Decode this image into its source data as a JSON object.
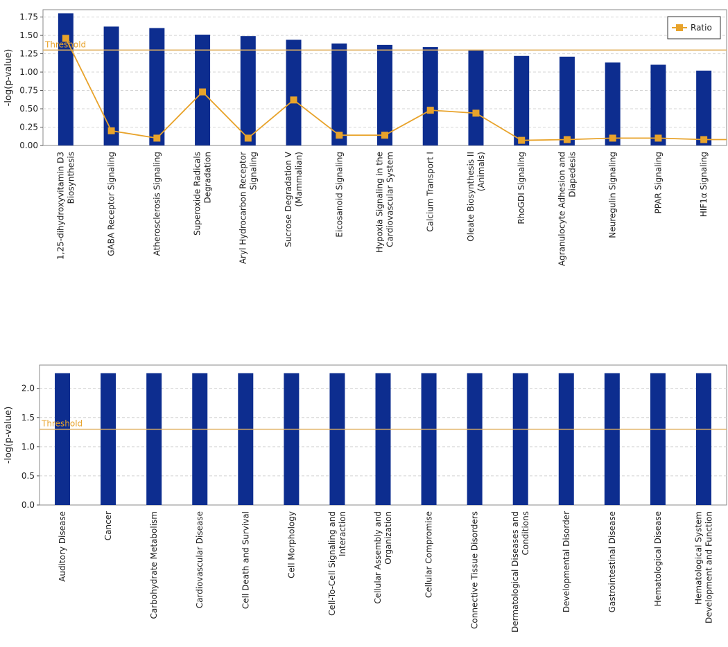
{
  "chart_data": [
    {
      "type": "bar",
      "ylabel": "-log(p-value)",
      "ylim": [
        0,
        1.85
      ],
      "yticks": [
        "0.00",
        "0.25",
        "0.50",
        "0.75",
        "1.00",
        "1.25",
        "1.50",
        "1.75"
      ],
      "threshold": {
        "label": "Threshold",
        "value": 1.3
      },
      "legend": {
        "position": "top-right",
        "entries": [
          "Ratio"
        ]
      },
      "grid": true,
      "categories": [
        [
          "1,25-dihydroxyvitamin D3",
          "Biosynthesis"
        ],
        [
          "GABA Receptor Signaling"
        ],
        [
          "Atherosclerosis Signaling"
        ],
        [
          "Superoxide Radicals",
          "Degradation"
        ],
        [
          "Aryl Hydrocarbon Receptor",
          "Signaling"
        ],
        [
          "Sucrose Degradation V",
          "(Mammalian)"
        ],
        [
          "Eicosanoid Signaling"
        ],
        [
          "Hypoxia Signaling in the",
          "Cardiovascular System"
        ],
        [
          "Calcium Transport I"
        ],
        [
          "Oleate Biosynthesis II",
          "(Animals)"
        ],
        [
          "RhoGDI Signaling"
        ],
        [
          "Agranulocyte Adhesion and",
          "Diapedesis"
        ],
        [
          "Neuregulin Signaling"
        ],
        [
          "PPAR Signaling"
        ],
        [
          "HIF1α Signaling"
        ]
      ],
      "series": [
        {
          "values": [
            1.8,
            1.62,
            1.6,
            1.51,
            1.49,
            1.44,
            1.39,
            1.37,
            1.34,
            1.3,
            1.22,
            1.21,
            1.13,
            1.1,
            1.02
          ]
        },
        {
          "name": "Ratio",
          "values": [
            1.46,
            0.2,
            0.1,
            0.73,
            0.1,
            0.62,
            0.14,
            0.14,
            0.48,
            0.44,
            0.07,
            0.08,
            0.1,
            0.1,
            0.08
          ]
        }
      ],
      "colors": {
        "bar": "#0d2d8f",
        "ratio": "#e8a32b",
        "threshold": "#e0b060",
        "grid": "#d4d4d4"
      }
    },
    {
      "type": "bar",
      "ylabel": "-log(p-value)",
      "ylim": [
        0,
        2.4
      ],
      "yticks": [
        "0.0",
        "0.5",
        "1.0",
        "1.5",
        "2.0"
      ],
      "threshold": {
        "label": "Threshold",
        "value": 1.3
      },
      "grid": true,
      "categories": [
        [
          "Auditory Disease"
        ],
        [
          "Cancer"
        ],
        [
          "Carbohydrate Metabolism"
        ],
        [
          "Cardiovascular Disease"
        ],
        [
          "Cell Death and Survival"
        ],
        [
          "Cell Morphology"
        ],
        [
          "Cell-To-Cell Signaling and",
          "Interaction"
        ],
        [
          "Cellular Assembly and",
          "Organization"
        ],
        [
          "Cellular Compromise"
        ],
        [
          "Connective Tissue Disorders"
        ],
        [
          "Dermatological Diseases and",
          "Conditions"
        ],
        [
          "Developmental Disorder"
        ],
        [
          "Gastrointestinal Disease"
        ],
        [
          "Hematological Disease"
        ],
        [
          "Hematological System",
          "Development and Function"
        ]
      ],
      "series": [
        {
          "values": [
            2.26,
            2.26,
            2.26,
            2.26,
            2.26,
            2.26,
            2.26,
            2.26,
            2.26,
            2.26,
            2.26,
            2.26,
            2.26,
            2.26,
            2.26
          ]
        }
      ],
      "colors": {
        "bar": "#0d2d8f",
        "threshold": "#e0b060",
        "grid": "#d4d4d4"
      }
    }
  ]
}
